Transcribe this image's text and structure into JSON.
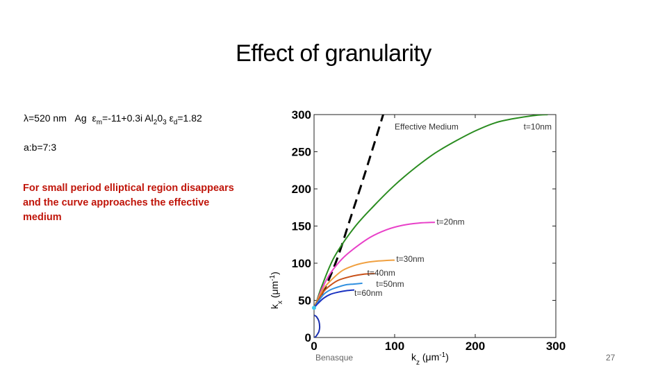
{
  "slide": {
    "title": "Effect of granularity",
    "params": {
      "lambda_sym": "λ",
      "lambda_val": "=520 nm",
      "metal": "Ag",
      "eps_sym": "ε",
      "eps_m_sub": "m",
      "eps_m_val": "=-11+0.3i",
      "dielectric": "Al",
      "al_sub": "2",
      "o_char": "0",
      "o_sub": "3",
      "eps_d_sub": "d",
      "eps_d_val": "=1.82"
    },
    "ratio": "a:b=7:3",
    "note": "For small period elliptical region disappears and the curve approaches the effective medium",
    "footer_left": "Benasque",
    "page_number": "27"
  },
  "chart_data": {
    "type": "line",
    "title": "",
    "xlabel_main": "k",
    "xlabel_sub": "z",
    "xlabel_units": " (μm",
    "xlabel_sup": "-1",
    "xlabel_close": ")",
    "ylabel_main": "k",
    "ylabel_sub": "x",
    "ylabel_units": " (μm",
    "ylabel_sup": "-1",
    "ylabel_close": ")",
    "xlim": [
      0,
      300
    ],
    "ylim": [
      0,
      300
    ],
    "x_ticks": [
      "0",
      "100",
      "200",
      "300"
    ],
    "y_ticks": [
      "0",
      "50",
      "100",
      "150",
      "200",
      "250",
      "300"
    ],
    "grid": false,
    "series": [
      {
        "name": "Effective Medium",
        "color": "#000000",
        "dashed": true,
        "x": [
          0,
          15,
          30,
          45,
          60,
          75,
          90
        ],
        "y": [
          40,
          70,
          110,
          160,
          210,
          262,
          315
        ]
      },
      {
        "name": "t=10nm",
        "color": "#2a8c20",
        "x": [
          0,
          3,
          10,
          25,
          50,
          75,
          100,
          125,
          150,
          175,
          200,
          225,
          250,
          275,
          290
        ],
        "y": [
          40,
          48,
          70,
          108,
          148,
          178,
          205,
          228,
          248,
          264,
          278,
          289,
          295,
          299,
          300
        ]
      },
      {
        "name": "t=20nm",
        "color": "#e840c8",
        "x": [
          0,
          3,
          10,
          20,
          35,
          50,
          70,
          90,
          110,
          130,
          150
        ],
        "y": [
          40,
          47,
          66,
          86,
          106,
          120,
          135,
          145,
          151,
          154,
          155
        ]
      },
      {
        "name": "t=30nm",
        "color": "#f0a040",
        "x": [
          0,
          5,
          12,
          22,
          35,
          50,
          65,
          80,
          95,
          100
        ],
        "y": [
          40,
          52,
          66,
          78,
          90,
          97,
          101,
          103,
          104,
          104
        ]
      },
      {
        "name": "t=40nm",
        "color": "#c85018",
        "x": [
          0,
          5,
          12,
          20,
          30,
          45,
          60,
          75
        ],
        "y": [
          40,
          50,
          62,
          70,
          77,
          82,
          85,
          86
        ]
      },
      {
        "name": "t=50nm",
        "color": "#3090e0",
        "x": [
          0,
          5,
          12,
          20,
          30,
          40,
          50,
          60
        ],
        "y": [
          40,
          48,
          58,
          64,
          68,
          71,
          72,
          73
        ]
      },
      {
        "name": "t=60nm",
        "color": "#1830c0",
        "x": [
          0,
          5,
          12,
          20,
          30,
          40,
          50
        ],
        "y": [
          40,
          46,
          53,
          58,
          61,
          63,
          64
        ]
      },
      {
        "name": "small elliptical arc",
        "color": "#1a2fb0",
        "x": [
          0,
          3,
          6,
          7,
          6,
          4,
          2,
          0
        ],
        "y": [
          30,
          28,
          22,
          14,
          8,
          4,
          1,
          0
        ]
      }
    ],
    "labels": [
      {
        "text": "Effective Medium",
        "x": 100,
        "y": 280,
        "color": "#333333"
      },
      {
        "text": "t=10nm",
        "x": 260,
        "y": 280,
        "color": "#333333"
      },
      {
        "text": "t=20nm",
        "x": 152,
        "y": 152,
        "color": "#333333"
      },
      {
        "text": "t=30nm",
        "x": 102,
        "y": 102,
        "color": "#333333"
      },
      {
        "text": "t=40nm",
        "x": 66,
        "y": 83,
        "color": "#333333"
      },
      {
        "text": "t=50nm",
        "x": 77,
        "y": 68,
        "color": "#333333"
      },
      {
        "text": "t=60nm",
        "x": 50,
        "y": 56,
        "color": "#333333"
      }
    ],
    "origin_marker_color": "#40c8e8"
  }
}
